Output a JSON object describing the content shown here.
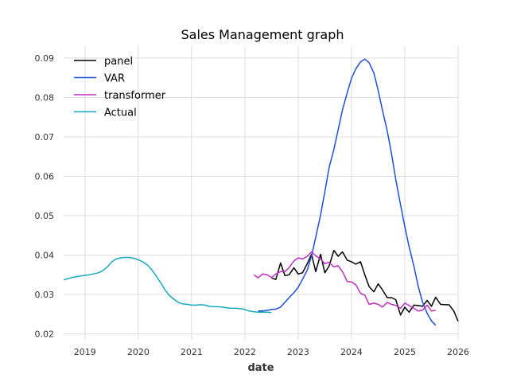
{
  "chart_data": {
    "type": "line",
    "title": "Sales Management graph",
    "xlabel": "date",
    "ylabel": "",
    "xlim": [
      2018.6,
      2026.0
    ],
    "ylim": [
      0.0185,
      0.093
    ],
    "x_ticks": [
      2019,
      2020,
      2021,
      2022,
      2023,
      2024,
      2025,
      2026
    ],
    "x_tick_labels": [
      "2019",
      "2020",
      "2021",
      "2022",
      "2023",
      "2024",
      "2025",
      "2026"
    ],
    "y_ticks": [
      0.02,
      0.03,
      0.04,
      0.05,
      0.06,
      0.07,
      0.08,
      0.09
    ],
    "y_tick_labels": [
      "0.02",
      "0.03",
      "0.04",
      "0.05",
      "0.06",
      "0.07",
      "0.08",
      "0.09"
    ],
    "grid": true,
    "legend_position": "top-left",
    "series": [
      {
        "name": "panel",
        "color": "#000000",
        "x": [
          2022.5,
          2022.58,
          2022.67,
          2022.75,
          2022.83,
          2022.92,
          2023.0,
          2023.08,
          2023.17,
          2023.25,
          2023.33,
          2023.42,
          2023.5,
          2023.58,
          2023.67,
          2023.75,
          2023.83,
          2023.92,
          2024.0,
          2024.08,
          2024.17,
          2024.25,
          2024.33,
          2024.42,
          2024.5,
          2024.58,
          2024.67,
          2024.75,
          2024.83,
          2024.92,
          2025.0,
          2025.08,
          2025.17,
          2025.25,
          2025.33,
          2025.42,
          2025.5,
          2025.58,
          2025.67,
          2025.75,
          2025.83,
          2025.92,
          2026.0
        ],
        "y": [
          0.0342,
          0.0338,
          0.038,
          0.0348,
          0.035,
          0.0368,
          0.0352,
          0.0355,
          0.0378,
          0.0402,
          0.0358,
          0.0402,
          0.0355,
          0.0372,
          0.0412,
          0.0397,
          0.0408,
          0.0387,
          0.0383,
          0.0377,
          0.0383,
          0.035,
          0.032,
          0.0307,
          0.0327,
          0.0312,
          0.0292,
          0.0292,
          0.0287,
          0.0248,
          0.0268,
          0.0255,
          0.0273,
          0.0272,
          0.027,
          0.0285,
          0.027,
          0.0293,
          0.0275,
          0.0274,
          0.0274,
          0.0258,
          0.0232
        ]
      },
      {
        "name": "VAR",
        "color": "#1f4fd6",
        "x": [
          2022.25,
          2022.33,
          2022.42,
          2022.5,
          2022.58,
          2022.67,
          2022.75,
          2022.83,
          2022.92,
          2023.0,
          2023.08,
          2023.17,
          2023.25,
          2023.33,
          2023.42,
          2023.5,
          2023.58,
          2023.67,
          2023.75,
          2023.83,
          2023.92,
          2024.0,
          2024.08,
          2024.17,
          2024.25,
          2024.33,
          2024.42,
          2024.5,
          2024.58,
          2024.67,
          2024.75,
          2024.83,
          2024.92,
          2025.0,
          2025.08,
          2025.17,
          2025.25,
          2025.33,
          2025.42,
          2025.5,
          2025.58
        ],
        "y": [
          0.0258,
          0.0258,
          0.026,
          0.0262,
          0.0263,
          0.0268,
          0.028,
          0.0292,
          0.0305,
          0.0318,
          0.0338,
          0.0362,
          0.0398,
          0.0445,
          0.0502,
          0.056,
          0.0622,
          0.0668,
          0.0718,
          0.0768,
          0.0812,
          0.0848,
          0.0872,
          0.089,
          0.0897,
          0.0888,
          0.0862,
          0.0818,
          0.0768,
          0.0715,
          0.0658,
          0.0592,
          0.0528,
          0.0472,
          0.0422,
          0.0372,
          0.0322,
          0.0282,
          0.0252,
          0.0233,
          0.0222
        ]
      },
      {
        "name": "transformer",
        "color": "#bf2cbf",
        "x": [
          2022.17,
          2022.25,
          2022.33,
          2022.42,
          2022.5,
          2022.58,
          2022.67,
          2022.75,
          2022.83,
          2022.92,
          2023.0,
          2023.08,
          2023.17,
          2023.25,
          2023.33,
          2023.42,
          2023.5,
          2023.58,
          2023.67,
          2023.75,
          2023.83,
          2023.92,
          2024.0,
          2024.08,
          2024.17,
          2024.25,
          2024.33,
          2024.42,
          2024.5,
          2024.58,
          2024.67,
          2024.75,
          2024.83,
          2024.92,
          2025.0,
          2025.08,
          2025.17,
          2025.25,
          2025.33,
          2025.42,
          2025.5,
          2025.58
        ],
        "y": [
          0.035,
          0.0342,
          0.0352,
          0.035,
          0.0343,
          0.0352,
          0.0358,
          0.0358,
          0.0368,
          0.0385,
          0.0393,
          0.039,
          0.0397,
          0.0408,
          0.0398,
          0.039,
          0.0378,
          0.0382,
          0.037,
          0.0373,
          0.0358,
          0.0333,
          0.0332,
          0.0325,
          0.0303,
          0.0298,
          0.0275,
          0.0278,
          0.0275,
          0.0268,
          0.028,
          0.0275,
          0.0272,
          0.0265,
          0.0278,
          0.0272,
          0.0265,
          0.0258,
          0.026,
          0.0273,
          0.0258,
          0.026
        ]
      },
      {
        "name": "Actual",
        "color": "#17a8c0",
        "x": [
          2018.6,
          2018.75,
          2018.92,
          2019.08,
          2019.25,
          2019.33,
          2019.42,
          2019.5,
          2019.58,
          2019.67,
          2019.75,
          2019.83,
          2019.92,
          2020.0,
          2020.08,
          2020.17,
          2020.25,
          2020.33,
          2020.42,
          2020.5,
          2020.58,
          2020.67,
          2020.75,
          2020.83,
          2020.92,
          2021.0,
          2021.08,
          2021.17,
          2021.25,
          2021.33,
          2021.42,
          2021.5,
          2021.58,
          2021.67,
          2021.75,
          2021.83,
          2021.92,
          2022.0,
          2022.08,
          2022.17,
          2022.25,
          2022.33,
          2022.42,
          2022.5
        ],
        "y": [
          0.0337,
          0.0343,
          0.0347,
          0.035,
          0.0355,
          0.036,
          0.037,
          0.0382,
          0.039,
          0.0393,
          0.0394,
          0.0394,
          0.0392,
          0.0388,
          0.0383,
          0.0375,
          0.0363,
          0.0348,
          0.033,
          0.0312,
          0.0298,
          0.0288,
          0.028,
          0.0276,
          0.0275,
          0.0273,
          0.0273,
          0.0274,
          0.0273,
          0.027,
          0.0269,
          0.0269,
          0.0268,
          0.0266,
          0.0265,
          0.0265,
          0.0264,
          0.0262,
          0.0258,
          0.0256,
          0.0255,
          0.0255,
          0.0255,
          0.0254
        ]
      }
    ]
  }
}
